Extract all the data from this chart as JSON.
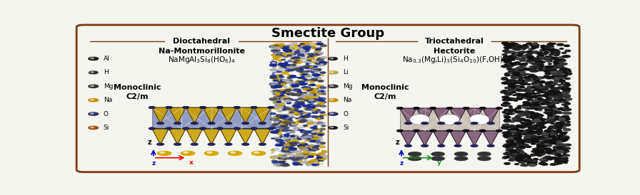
{
  "title": "Smectite Group",
  "title_fontsize": 13,
  "bg_color": "#f5f5f0",
  "border_color": "#7B3A10",
  "border_linewidth": 2.0,
  "left_section_label": "Dioctahedral",
  "right_section_label": "Trioctahedral",
  "left_mineral_name": "Na-Montmorillonite",
  "left_formula_parts": [
    {
      "text": "NaMgAl",
      "sub": false
    },
    {
      "text": "3",
      "sub": true
    },
    {
      "text": "Si",
      "sub": false
    },
    {
      "text": "8",
      "sub": true
    },
    {
      "text": "(HO",
      "sub": false
    },
    {
      "text": "6",
      "sub": true
    },
    {
      "text": ")",
      "sub": false
    },
    {
      "text": "4",
      "sub": true
    }
  ],
  "left_formula_display": "NaMgAl$_3$Si$_8$(HO$_6$)$_4$",
  "left_crystal_system": "Monoclinic",
  "left_space_group": "C2/m",
  "right_mineral_name": "Hectorite",
  "right_formula_display": "Na$_{0.3}$(Mg,Li)$_3$(Si$_4$O$_{10}$)(F,OH)$_2$",
  "right_crystal_system": "Monoclinic",
  "right_space_group": "C2/m",
  "left_legend": [
    {
      "label": "Al",
      "color": "#1a1a1a",
      "size": 0.01
    },
    {
      "label": "H",
      "color": "#2a2a2a",
      "size": 0.009
    },
    {
      "label": "Mg",
      "color": "#333333",
      "size": 0.01
    },
    {
      "label": "Na",
      "color": "#c8880a",
      "size": 0.01
    },
    {
      "label": "O",
      "color": "#303060",
      "size": 0.01
    },
    {
      "label": "Si",
      "color": "#a05010",
      "size": 0.01
    }
  ],
  "right_legend": [
    {
      "label": "H",
      "color": "#1a1a1a",
      "size": 0.009
    },
    {
      "label": "Li",
      "color": "#b8a850",
      "size": 0.01
    },
    {
      "label": "Mg",
      "color": "#333333",
      "size": 0.01
    },
    {
      "label": "Na",
      "color": "#c8880a",
      "size": 0.01
    },
    {
      "label": "O",
      "color": "#303060",
      "size": 0.01
    },
    {
      "label": "Si",
      "color": "#1a1a1a",
      "size": 0.009
    }
  ],
  "left_tet_color": "#c8a000",
  "left_oct_color": "#4055a0",
  "right_tet_color": "#7a5570",
  "right_oct_color": "#a09080",
  "section_line_color": "#7B3A10",
  "label_fontsize": 8,
  "mineral_fontsize": 8,
  "formula_fontsize": 7.5,
  "crystal_fontsize": 8,
  "legend_fontsize": 6.5
}
